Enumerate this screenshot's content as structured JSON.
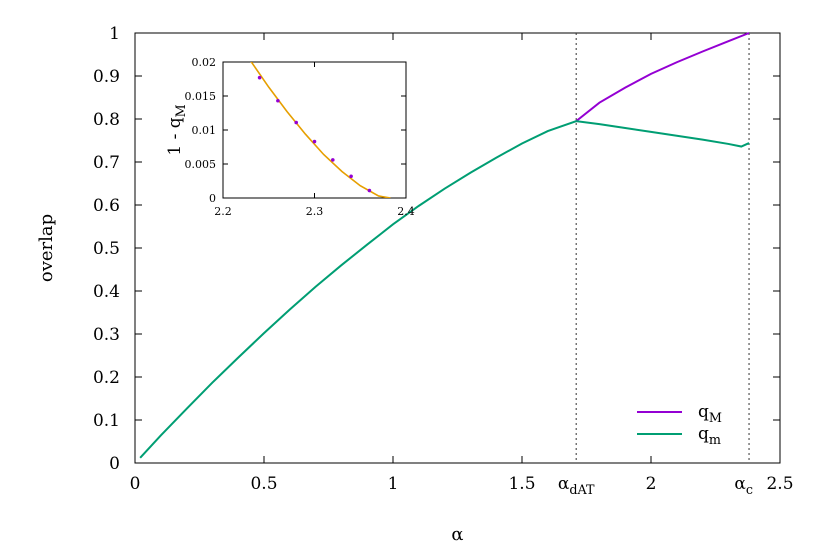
{
  "chart_data": [
    {
      "type": "line",
      "xlabel": "α",
      "ylabel": "overlap",
      "xlim": [
        0,
        2.5
      ],
      "ylim": [
        0,
        1
      ],
      "xticks": [
        {
          "value": 0,
          "label": "0"
        },
        {
          "value": 0.5,
          "label": "0.5"
        },
        {
          "value": 1,
          "label": "1"
        },
        {
          "value": 1.5,
          "label": "1.5"
        },
        {
          "value": 2,
          "label": "2"
        },
        {
          "value": 2.5,
          "label": "2.5"
        }
      ],
      "yticks": [
        {
          "value": 0,
          "label": "0"
        },
        {
          "value": 0.1,
          "label": "0.1"
        },
        {
          "value": 0.2,
          "label": "0.2"
        },
        {
          "value": 0.3,
          "label": "0.3"
        },
        {
          "value": 0.4,
          "label": "0.4"
        },
        {
          "value": 0.5,
          "label": "0.5"
        },
        {
          "value": 0.6,
          "label": "0.6"
        },
        {
          "value": 0.7,
          "label": "0.7"
        },
        {
          "value": 0.8,
          "label": "0.8"
        },
        {
          "value": 0.9,
          "label": "0.9"
        },
        {
          "value": 1,
          "label": "1"
        }
      ],
      "annotations": [
        {
          "x": 1.71,
          "label_main": "α",
          "label_sub": "dAT"
        },
        {
          "x": 2.38,
          "label_main": "α",
          "label_sub": "c"
        }
      ],
      "legend_position": "bottom-right",
      "grid": false,
      "series": [
        {
          "name_main": "q",
          "name_sub": "M",
          "color": "#9400d3",
          "x": [
            1.71,
            1.8,
            1.9,
            2.0,
            2.1,
            2.2,
            2.3,
            2.38
          ],
          "y": [
            0.795,
            0.838,
            0.873,
            0.905,
            0.932,
            0.957,
            0.981,
            1.0
          ]
        },
        {
          "name_main": "q",
          "name_sub": "m",
          "color": "#009e73",
          "x": [
            0.02,
            0.1,
            0.2,
            0.3,
            0.4,
            0.5,
            0.6,
            0.7,
            0.8,
            0.9,
            1.0,
            1.1,
            1.2,
            1.3,
            1.4,
            1.5,
            1.6,
            1.71,
            1.8,
            1.9,
            2.0,
            2.1,
            2.2,
            2.3,
            2.35,
            2.38
          ],
          "y": [
            0.012,
            0.064,
            0.126,
            0.187,
            0.245,
            0.302,
            0.357,
            0.41,
            0.46,
            0.508,
            0.555,
            0.598,
            0.638,
            0.675,
            0.71,
            0.743,
            0.772,
            0.795,
            0.788,
            0.779,
            0.77,
            0.761,
            0.752,
            0.742,
            0.736,
            0.744
          ]
        }
      ]
    },
    {
      "type": "line",
      "inset": true,
      "ylabel_main": "1 - q",
      "ylabel_sub": "M",
      "xlim": [
        2.2,
        2.4
      ],
      "ylim": [
        0,
        0.02
      ],
      "xticks": [
        {
          "value": 2.2,
          "label": "2.2"
        },
        {
          "value": 2.3,
          "label": "2.3"
        },
        {
          "value": 2.4,
          "label": "2.4"
        }
      ],
      "yticks": [
        {
          "value": 0,
          "label": "0"
        },
        {
          "value": 0.005,
          "label": "0.005"
        },
        {
          "value": 0.01,
          "label": "0.01"
        },
        {
          "value": 0.015,
          "label": "0.015"
        },
        {
          "value": 0.02,
          "label": "0.02"
        }
      ],
      "series": [
        {
          "kind": "line",
          "color": "#e69f00",
          "x": [
            2.23,
            2.25,
            2.27,
            2.29,
            2.31,
            2.33,
            2.35,
            2.37,
            2.383
          ],
          "y": [
            0.0202,
            0.0163,
            0.0127,
            0.0094,
            0.0064,
            0.0039,
            0.0018,
            0.0003,
            0.0
          ]
        },
        {
          "kind": "points",
          "color": "#9400d3",
          "x": [
            2.24,
            2.26,
            2.28,
            2.3,
            2.32,
            2.34,
            2.36
          ],
          "y": [
            0.0177,
            0.0143,
            0.0111,
            0.0083,
            0.0056,
            0.0032,
            0.0011
          ]
        }
      ]
    }
  ]
}
